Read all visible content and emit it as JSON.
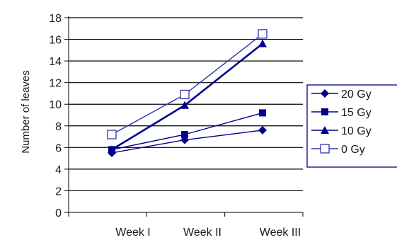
{
  "chart_data": {
    "type": "line",
    "title": "",
    "xlabel": "",
    "ylabel": "Number of leaves",
    "categories": [
      "Week I",
      "Week II",
      "Week III"
    ],
    "ylim": [
      0,
      18
    ],
    "yticks": [
      0,
      2,
      4,
      6,
      8,
      10,
      12,
      14,
      16,
      18
    ],
    "grid": "horizontal",
    "legend_position": "right",
    "series": [
      {
        "name": "20 Gy",
        "values": [
          5.5,
          6.7,
          7.6
        ],
        "marker": "diamond",
        "marker_fill": "filled",
        "color": "#00008b"
      },
      {
        "name": "15 Gy",
        "values": [
          5.8,
          7.2,
          9.2
        ],
        "marker": "square",
        "marker_fill": "filled",
        "color": "#00008b"
      },
      {
        "name": "10 Gy",
        "values": [
          5.8,
          9.9,
          15.6
        ],
        "marker": "triangle",
        "marker_fill": "filled",
        "color": "#00008b"
      },
      {
        "name": "0 Gy",
        "values": [
          7.2,
          10.9,
          16.5
        ],
        "marker": "square",
        "marker_fill": "hollow",
        "color": "#3333aa"
      }
    ]
  }
}
